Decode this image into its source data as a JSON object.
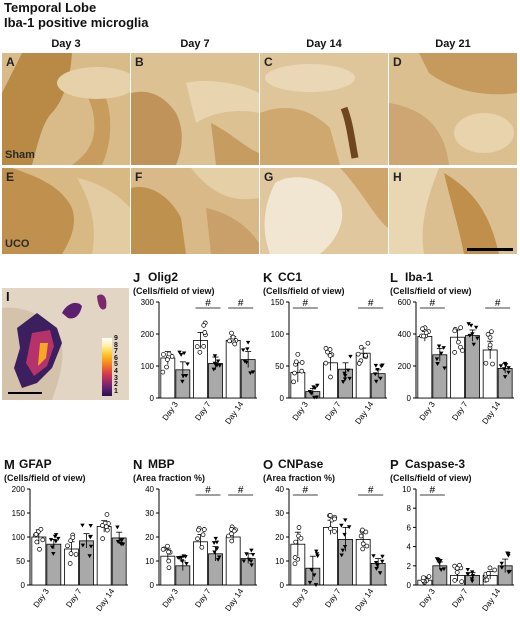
{
  "header": {
    "title": "Temporal Lobe",
    "subtitle": "Iba-1 positive microglia"
  },
  "columns": [
    "Day 3",
    "Day 7",
    "Day 14",
    "Day 21"
  ],
  "photo_panels": [
    {
      "letter": "A"
    },
    {
      "letter": "B"
    },
    {
      "letter": "C"
    },
    {
      "letter": "D"
    },
    {
      "letter": "E"
    },
    {
      "letter": "F"
    },
    {
      "letter": "G"
    },
    {
      "letter": "H"
    }
  ],
  "row_labels": {
    "sham": "Sham",
    "uco": "UCO"
  },
  "heatmap": {
    "letter": "I",
    "scale": [
      "9",
      "8",
      "7",
      "6",
      "5",
      "4",
      "3",
      "2",
      "1"
    ],
    "colors": [
      "#ffffff",
      "#fff3b0",
      "#ffd23f",
      "#f9a11b",
      "#f06a2c",
      "#d13a4e",
      "#9b2a6a",
      "#5b1f73",
      "#23144a"
    ]
  },
  "chart_data": [
    {
      "letter": "J",
      "title": "Olig2",
      "unit": "(Cells/field of view)",
      "type": "bar",
      "categories": [
        "Day 3",
        "Day 7",
        "Day 14"
      ],
      "ylim": [
        0,
        300
      ],
      "yticks": [
        0,
        100,
        200,
        300
      ],
      "series": [
        {
          "values": [
            125,
            180,
            180
          ]
        },
        {
          "values": [
            88,
            108,
            120
          ]
        }
      ],
      "errors": [
        [
          20,
          25
        ],
        [
          25,
          20
        ],
        [
          12,
          25
        ]
      ],
      "significant": [
        false,
        true,
        true
      ],
      "sig_label": "#"
    },
    {
      "letter": "K",
      "title": "CC1",
      "unit": "(Cells/field of view)",
      "type": "bar",
      "categories": [
        "Day 3",
        "Day 7",
        "Day 14"
      ],
      "ylim": [
        0,
        150
      ],
      "yticks": [
        0,
        50,
        100,
        150
      ],
      "series": [
        {
          "values": [
            40,
            55,
            70
          ]
        },
        {
          "values": [
            10,
            45,
            38
          ]
        }
      ],
      "errors": [
        [
          15,
          5
        ],
        [
          12,
          10
        ],
        [
          8,
          6
        ]
      ],
      "significant": [
        true,
        false,
        true
      ],
      "sig_label": "#"
    },
    {
      "letter": "L",
      "title": "Iba-1",
      "unit": "(Cells/field of view)",
      "type": "bar",
      "categories": [
        "Day 3",
        "Day 7",
        "Day 14"
      ],
      "ylim": [
        0,
        600
      ],
      "yticks": [
        0,
        200,
        400,
        600
      ],
      "series": [
        {
          "values": [
            385,
            380,
            300
          ]
        },
        {
          "values": [
            270,
            390,
            185
          ]
        }
      ],
      "errors": [
        [
          30,
          40
        ],
        [
          45,
          35
        ],
        [
          55,
          30
        ]
      ],
      "significant": [
        true,
        false,
        true
      ],
      "sig_label": "#"
    },
    {
      "letter": "M",
      "title": "GFAP",
      "unit": "(Cells/field of view)",
      "type": "bar",
      "categories": [
        "Day 3",
        "Day 7",
        "Day 14"
      ],
      "ylim": [
        0,
        200
      ],
      "yticks": [
        0,
        50,
        100,
        150,
        200
      ],
      "series": [
        {
          "values": [
            100,
            75,
            122
          ]
        },
        {
          "values": [
            85,
            92,
            98
          ]
        }
      ],
      "errors": [
        [
          15,
          10
        ],
        [
          15,
          15
        ],
        [
          12,
          12
        ]
      ],
      "significant": [
        false,
        false,
        false
      ],
      "sig_label": "#"
    },
    {
      "letter": "N",
      "title": "MBP",
      "unit": "(Area fraction %)",
      "type": "bar",
      "categories": [
        "Day 3",
        "Day 7",
        "Day 14"
      ],
      "ylim": [
        0,
        40
      ],
      "yticks": [
        0,
        10,
        20,
        30,
        40
      ],
      "series": [
        {
          "values": [
            12,
            18,
            20
          ]
        },
        {
          "values": [
            8,
            13,
            11
          ]
        }
      ],
      "errors": [
        [
          3,
          2
        ],
        [
          3,
          3
        ],
        [
          2,
          2
        ]
      ],
      "significant": [
        false,
        true,
        true
      ],
      "sig_label": "#"
    },
    {
      "letter": "O",
      "title": "CNPase",
      "unit": "(Area fraction %)",
      "type": "bar",
      "categories": [
        "Day 3",
        "Day 7",
        "Day 14"
      ],
      "ylim": [
        0,
        40
      ],
      "yticks": [
        0,
        10,
        20,
        30,
        40
      ],
      "series": [
        {
          "values": [
            17,
            24,
            19
          ]
        },
        {
          "values": [
            7,
            19,
            9
          ]
        }
      ],
      "errors": [
        [
          5,
          5
        ],
        [
          3,
          5
        ],
        [
          3,
          2
        ]
      ],
      "significant": [
        true,
        false,
        true
      ],
      "sig_label": "#"
    },
    {
      "letter": "P",
      "title": "Caspase-3",
      "unit": "(Cells/field of view)",
      "type": "bar",
      "categories": [
        "Day 3",
        "Day 7",
        "Day 14"
      ],
      "ylim": [
        0,
        10
      ],
      "yticks": [
        0,
        2,
        4,
        6,
        8,
        10
      ],
      "series": [
        {
          "values": [
            0.5,
            1.0,
            1.0
          ]
        },
        {
          "values": [
            2.0,
            1.0,
            2.0
          ]
        }
      ],
      "errors": [
        [
          0.3,
          0.4
        ],
        [
          0.6,
          0.3
        ],
        [
          0.4,
          0.7
        ]
      ],
      "significant": [
        true,
        false,
        false
      ],
      "sig_label": "#"
    }
  ]
}
